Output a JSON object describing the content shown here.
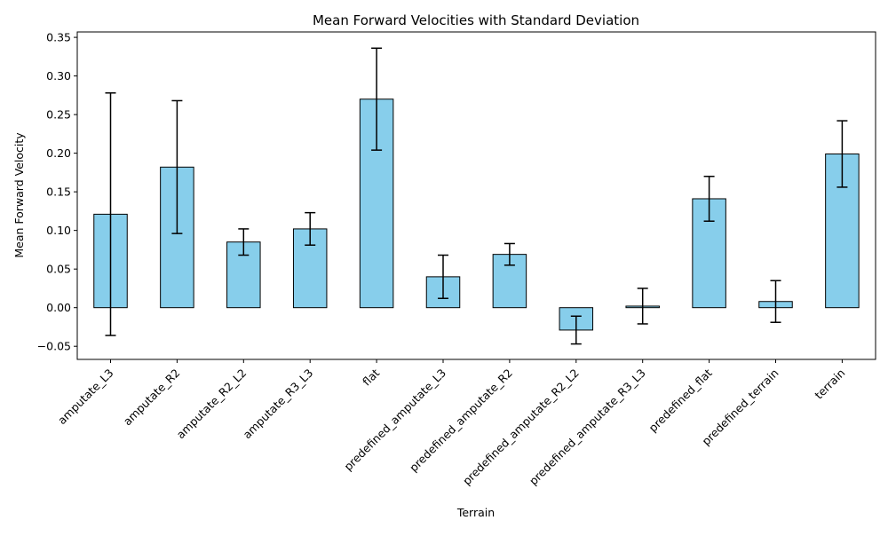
{
  "chart_data": {
    "type": "bar",
    "title": "Mean Forward Velocities with Standard Deviation",
    "xlabel": "Terrain",
    "ylabel": "Mean Forward Velocity",
    "categories": [
      "amputate_L3",
      "amputate_R2",
      "amputate_R2_L2",
      "amputate_R3_L3",
      "flat",
      "predefined_amputate_L3",
      "predefined_amputate_R2",
      "predefined_amputate_R2_L2",
      "predefined_amputate_R3_L3",
      "predefined_flat",
      "predefined_terrain",
      "terrain"
    ],
    "values": [
      0.121,
      0.182,
      0.085,
      0.102,
      0.27,
      0.04,
      0.069,
      -0.029,
      0.002,
      0.141,
      0.008,
      0.199
    ],
    "errors": [
      0.157,
      0.086,
      0.017,
      0.021,
      0.066,
      0.028,
      0.014,
      0.018,
      0.023,
      0.029,
      0.027,
      0.043
    ],
    "ylim": [
      -0.067,
      0.357
    ],
    "yticks": [
      -0.05,
      0.0,
      0.05,
      0.1,
      0.15,
      0.2,
      0.25,
      0.3,
      0.35
    ],
    "ytick_labels": [
      "−0.05",
      "0.00",
      "0.05",
      "0.10",
      "0.15",
      "0.20",
      "0.25",
      "0.30",
      "0.35"
    ],
    "grid": false,
    "colors": {
      "bar_fill": "#87ceeb",
      "bar_edge": "#000000",
      "error_bar": "#000000"
    }
  }
}
